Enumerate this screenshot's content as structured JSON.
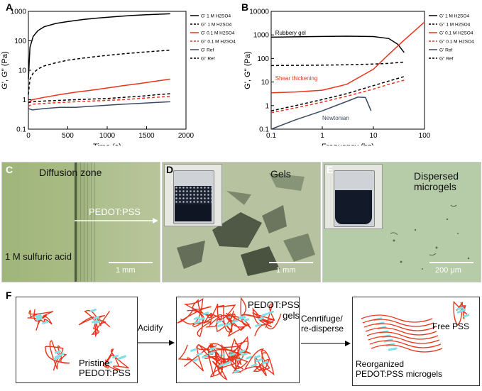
{
  "panels": {
    "A": "A",
    "B": "B",
    "C": "C",
    "D": "D",
    "E": "E",
    "F": "F"
  },
  "chart_data": [
    {
      "type": "line",
      "panel": "A",
      "xlabel": "Time (s)",
      "ylabel": "G', G'' (Pa)",
      "xlim": [
        0,
        2000
      ],
      "ylim": [
        0.1,
        1000
      ],
      "yscale": "log",
      "xticks": [
        "0",
        "500",
        "1000",
        "1500",
        "2000"
      ],
      "yticks": [
        "0.1",
        "1",
        "10",
        "100",
        "1000"
      ],
      "legend_position": "right",
      "series": [
        {
          "name": "G' 1 M H2SO4",
          "color": "#000000",
          "dash": "solid",
          "x": [
            0,
            20,
            60,
            120,
            200,
            350,
            500,
            700,
            900,
            1100,
            1300,
            1500,
            1800
          ],
          "y": [
            5,
            60,
            140,
            220,
            300,
            390,
            450,
            530,
            600,
            660,
            720,
            770,
            830
          ]
        },
        {
          "name": "G'' 1 M H2SO4",
          "color": "#000000",
          "dash": "dashed",
          "x": [
            0,
            20,
            60,
            120,
            200,
            350,
            500,
            700,
            900,
            1100,
            1300,
            1500,
            1800
          ],
          "y": [
            1.5,
            5,
            8,
            11,
            14,
            18,
            22,
            26,
            30,
            34,
            38,
            42,
            48
          ]
        },
        {
          "name": "G' 0.1 M H2SO4",
          "color": "#e8341c",
          "dash": "solid",
          "x": [
            0,
            50,
            200,
            400,
            600,
            800,
            1000,
            1200,
            1400,
            1600,
            1800
          ],
          "y": [
            0.8,
            1.0,
            1.2,
            1.5,
            1.8,
            2.1,
            2.5,
            3.0,
            3.5,
            4.2,
            5.0
          ]
        },
        {
          "name": "G'' 0.1 M H2SO4",
          "color": "#e8341c",
          "dash": "dashed",
          "x": [
            0,
            50,
            200,
            400,
            600,
            800,
            1000,
            1200,
            1400,
            1600,
            1800
          ],
          "y": [
            0.6,
            0.7,
            0.75,
            0.8,
            0.85,
            0.9,
            0.95,
            1.0,
            1.1,
            1.2,
            1.3
          ]
        },
        {
          "name": "G' Ref",
          "color": "#3a4a66",
          "dash": "solid",
          "x": [
            0,
            50,
            200,
            400,
            600,
            800,
            1000,
            1200,
            1400,
            1600,
            1800
          ],
          "y": [
            0.5,
            0.45,
            0.5,
            0.55,
            0.55,
            0.6,
            0.65,
            0.7,
            0.75,
            0.8,
            0.85
          ]
        },
        {
          "name": "G'' Ref",
          "color": "#000000",
          "dash": "dashed",
          "x": [
            0,
            50,
            200,
            400,
            600,
            800,
            1000,
            1200,
            1400,
            1600,
            1800
          ],
          "y": [
            0.8,
            0.85,
            0.9,
            0.95,
            1.0,
            1.05,
            1.1,
            1.2,
            1.3,
            1.45,
            1.6
          ]
        }
      ]
    },
    {
      "type": "line",
      "panel": "B",
      "xlabel": "Frequency (hz)",
      "ylabel": "G', G'' (Pa)",
      "xlim": [
        0.1,
        100
      ],
      "ylim": [
        0.1,
        10000
      ],
      "xscale": "log",
      "yscale": "log",
      "xticks": [
        "0.1",
        "1",
        "10",
        "100"
      ],
      "yticks": [
        "0.1",
        "1",
        "10",
        "100",
        "1000",
        "10000"
      ],
      "legend_position": "right",
      "annotations": [
        "Rubbery gel",
        "Shear thickening",
        "Newtonian"
      ],
      "series": [
        {
          "name": "G' 1 M H2SO4",
          "color": "#000000",
          "dash": "solid",
          "x": [
            0.1,
            0.3,
            1,
            3,
            10,
            20,
            30,
            40
          ],
          "y": [
            800,
            830,
            860,
            880,
            850,
            700,
            400,
            180
          ]
        },
        {
          "name": "G'' 1 M H2SO4",
          "color": "#000000",
          "dash": "dashed",
          "x": [
            0.1,
            0.3,
            1,
            3,
            10,
            20,
            40
          ],
          "y": [
            50,
            51,
            52,
            54,
            58,
            62,
            70
          ]
        },
        {
          "name": "G' 0.1 M H2SO4",
          "color": "#e8341c",
          "dash": "solid",
          "x": [
            0.1,
            0.3,
            1,
            3,
            10,
            20,
            40,
            100
          ],
          "y": [
            3.5,
            3.8,
            4.5,
            8,
            35,
            150,
            600,
            3500
          ]
        },
        {
          "name": "G'' 0.1 M H2SO4",
          "color": "#e8341c",
          "dash": "dashed",
          "x": [
            0.1,
            0.3,
            1,
            3,
            10,
            20,
            40
          ],
          "y": [
            0.5,
            0.8,
            1.4,
            2.5,
            5,
            8,
            12
          ]
        },
        {
          "name": "G' Ref",
          "color": "#3a4a66",
          "dash": "solid",
          "x": [
            0.1,
            0.3,
            1,
            3,
            5,
            7,
            9
          ],
          "y": [
            0.1,
            0.25,
            0.6,
            1.5,
            2.3,
            2.2,
            0.6
          ]
        },
        {
          "name": "G'' Ref",
          "color": "#000000",
          "dash": "dashed",
          "x": [
            0.1,
            0.3,
            1,
            3,
            10,
            20,
            40
          ],
          "y": [
            0.6,
            1.0,
            1.8,
            3.2,
            7,
            11,
            17
          ]
        }
      ]
    }
  ],
  "photos": {
    "C": {
      "label_top": "Diffusion zone",
      "label_mid": "PEDOT:PSS",
      "label_bottom": "1 M sulfuric acid",
      "scale": "1 mm"
    },
    "D": {
      "label": "Gels",
      "scale": "1 mm"
    },
    "E": {
      "label": "Dispersed\nmicrogels",
      "scale": "200 μm"
    }
  },
  "scheme": {
    "box1_label": "Pristine\nPEDOT:PSS",
    "arrow1_label": "Acidify",
    "box2_label": "PEDOT:PSS\ngels",
    "arrow2_label": "Cenrtifuge/\nre-disperse",
    "box3_free": "Free PSS",
    "box3_label": "Reorganized\nPEDOT:PSS microgels"
  },
  "colors": {
    "red": "#e8341c",
    "navy": "#3a4a66",
    "cyan": "#7fe0e8",
    "photo_green": "#a9ba86"
  }
}
